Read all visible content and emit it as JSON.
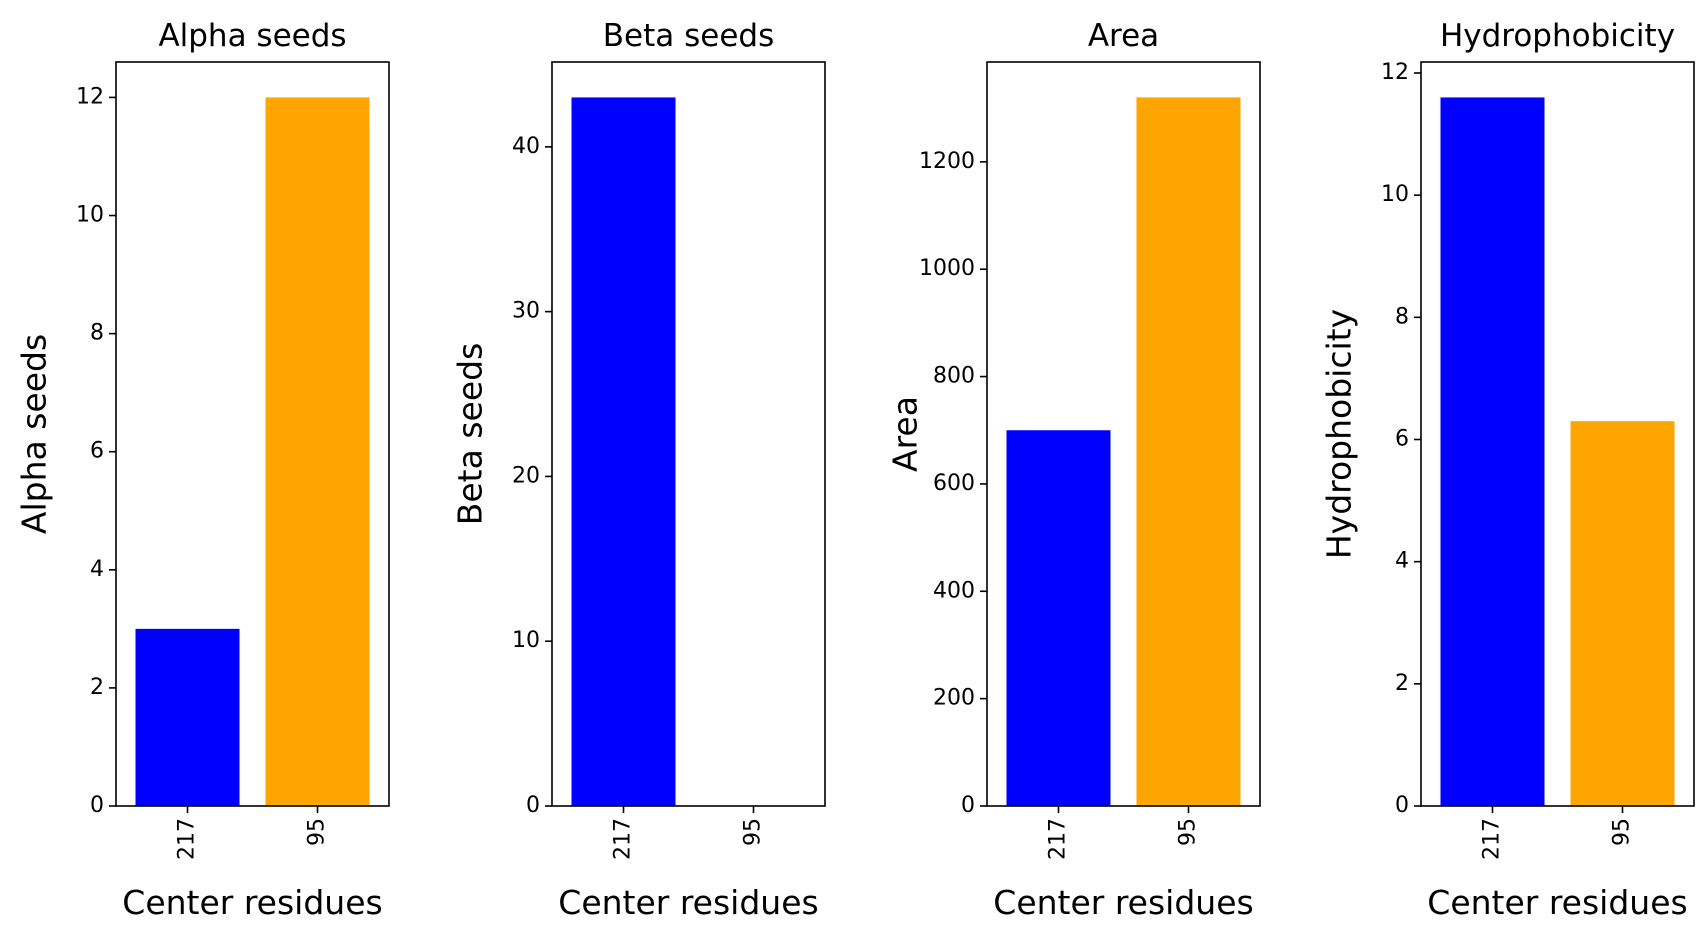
{
  "chart_data": [
    {
      "type": "bar",
      "title": "Alpha seeds",
      "xlabel": "Center residues",
      "ylabel": "Alpha seeds",
      "categories": [
        "217",
        "95"
      ],
      "values": [
        3,
        12
      ],
      "colors": [
        "#0000ff",
        "#ffa500"
      ],
      "yticks": [
        0,
        2,
        4,
        6,
        8,
        10,
        12
      ],
      "ylim": [
        0,
        12.6
      ],
      "grid": false
    },
    {
      "type": "bar",
      "title": "Beta seeds",
      "xlabel": "Center residues",
      "ylabel": "Beta seeds",
      "categories": [
        "217",
        "95"
      ],
      "values": [
        43,
        0
      ],
      "colors": [
        "#0000ff",
        "#ffa500"
      ],
      "yticks": [
        0,
        10,
        20,
        30,
        40
      ],
      "ylim": [
        0,
        45.15
      ],
      "grid": false
    },
    {
      "type": "bar",
      "title": "Area",
      "xlabel": "Center residues",
      "ylabel": "Area",
      "categories": [
        "217",
        "95"
      ],
      "values": [
        700,
        1320
      ],
      "colors": [
        "#0000ff",
        "#ffa500"
      ],
      "yticks": [
        0,
        200,
        400,
        600,
        800,
        1000,
        1200
      ],
      "ylim": [
        0,
        1386
      ],
      "grid": false
    },
    {
      "type": "bar",
      "title": "Hydrophobicity",
      "xlabel": "Center residues",
      "ylabel": "Hydrophobicity",
      "categories": [
        "217",
        "95"
      ],
      "values": [
        11.6,
        6.3
      ],
      "colors": [
        "#0000ff",
        "#ffa500"
      ],
      "yticks": [
        0,
        2,
        4,
        6,
        8,
        10,
        12
      ],
      "ylim": [
        0,
        12.18
      ],
      "grid": false
    }
  ]
}
